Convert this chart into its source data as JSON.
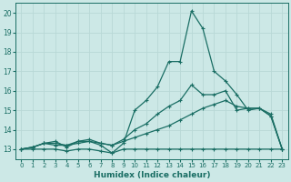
{
  "xlabel": "Humidex (Indice chaleur)",
  "background_color": "#cce8e6",
  "grid_color": "#b8d8d6",
  "line_color": "#1a6e64",
  "xlim": [
    -0.5,
    23.5
  ],
  "ylim": [
    12.5,
    20.5
  ],
  "yticks": [
    13,
    14,
    15,
    16,
    17,
    18,
    19,
    20
  ],
  "xticks": [
    0,
    1,
    2,
    3,
    4,
    5,
    6,
    7,
    8,
    9,
    10,
    11,
    12,
    13,
    14,
    15,
    16,
    17,
    18,
    19,
    20,
    21,
    22,
    23
  ],
  "series": [
    [
      13.0,
      13.0,
      13.0,
      13.0,
      12.9,
      13.0,
      13.0,
      12.9,
      12.8,
      13.0,
      13.0,
      13.0,
      13.0,
      13.0,
      13.0,
      13.0,
      13.0,
      13.0,
      13.0,
      13.0,
      13.0,
      13.0,
      13.0,
      13.0
    ],
    [
      13.0,
      13.1,
      13.3,
      13.2,
      13.2,
      13.3,
      13.4,
      13.3,
      13.2,
      13.4,
      13.6,
      13.8,
      14.0,
      14.2,
      14.5,
      14.8,
      15.1,
      15.3,
      15.5,
      15.2,
      15.1,
      15.1,
      14.8,
      13.0
    ],
    [
      13.0,
      13.1,
      13.3,
      13.3,
      13.2,
      13.4,
      13.5,
      13.3,
      13.2,
      13.5,
      14.0,
      14.3,
      14.8,
      15.2,
      15.5,
      16.3,
      15.8,
      15.8,
      16.0,
      15.0,
      15.1,
      15.1,
      14.7,
      13.0
    ],
    [
      13.0,
      13.1,
      13.3,
      13.4,
      13.1,
      13.4,
      13.4,
      13.2,
      12.8,
      13.3,
      15.0,
      15.5,
      16.2,
      17.5,
      17.5,
      20.1,
      19.2,
      17.0,
      16.5,
      15.8,
      15.0,
      15.1,
      14.7,
      13.0
    ]
  ]
}
